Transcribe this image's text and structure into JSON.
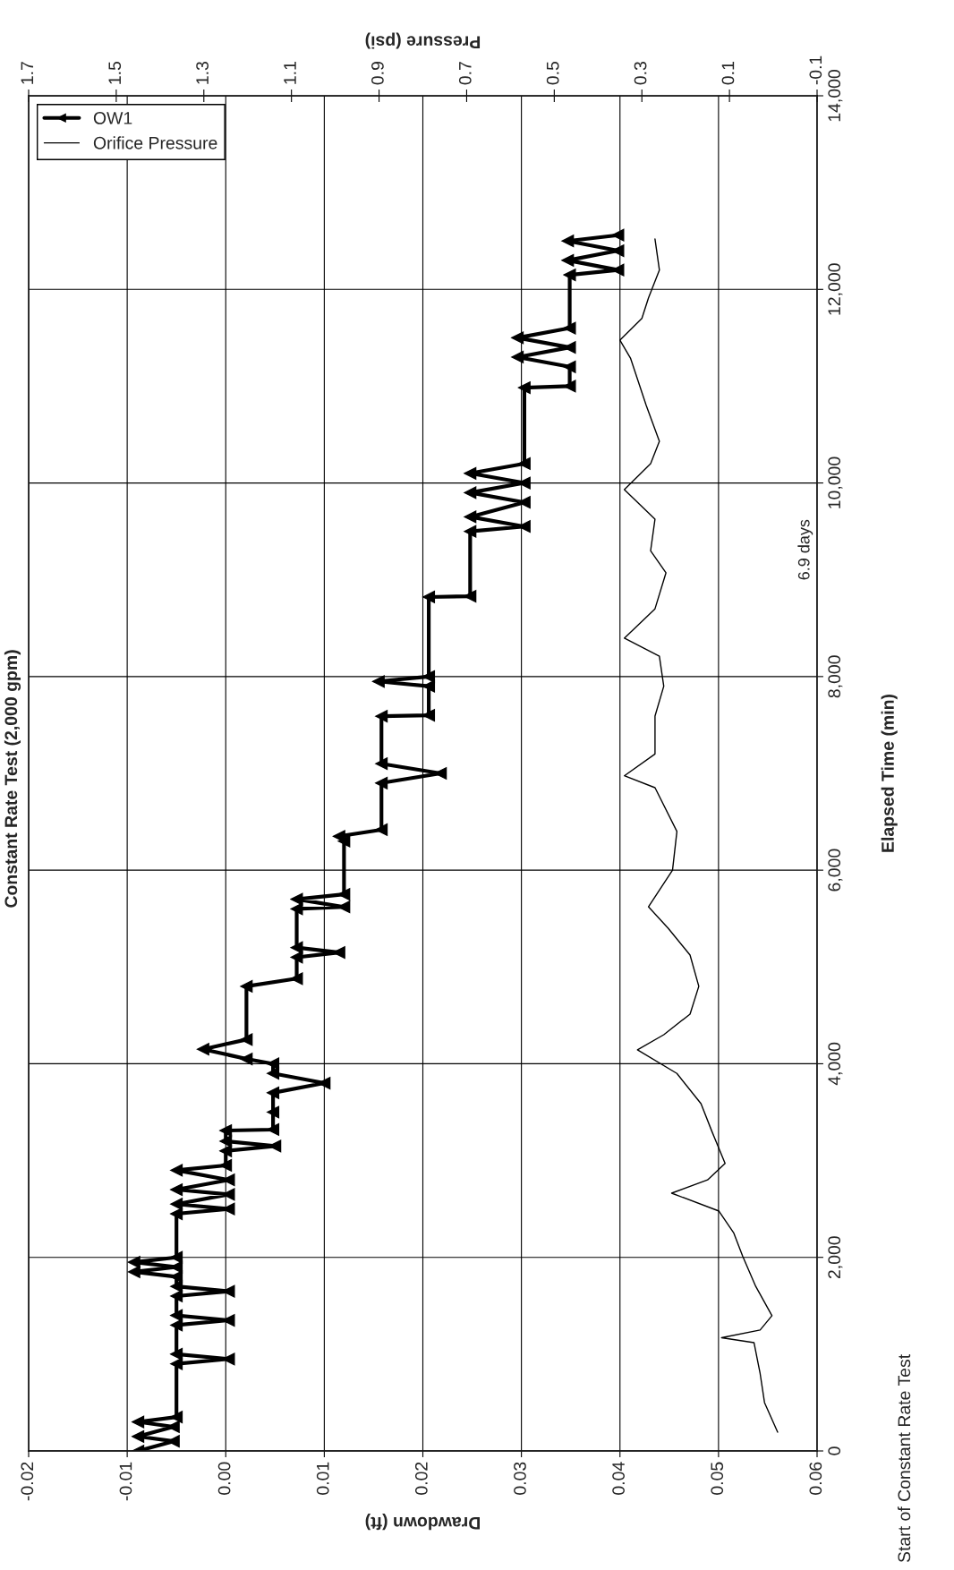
{
  "chart_data": {
    "type": "line",
    "title": "Constant Rate Test (2,000 gpm)",
    "orientation": "horizontal",
    "xlabel": "Drawdown (ft)",
    "x2label": "Pressure (psi)",
    "ylabel": "Elapsed Time (min)",
    "xlim": [
      -0.02,
      0.06
    ],
    "xticks": [
      {
        "value": -0.02,
        "label": "-0.02"
      },
      {
        "value": -0.01,
        "label": "-0.01"
      },
      {
        "value": 0,
        "label": "0.00"
      },
      {
        "value": 0.01,
        "label": "0.01"
      },
      {
        "value": 0.02,
        "label": "0.02"
      },
      {
        "value": 0.03,
        "label": "0.03"
      },
      {
        "value": 0.04,
        "label": "0.04"
      },
      {
        "value": 0.05,
        "label": "0.05"
      },
      {
        "value": 0.06,
        "label": "0.06"
      }
    ],
    "x2lim": [
      1.7,
      -0.1
    ],
    "x2ticks": [
      1.7,
      1.5,
      1.3,
      1.1,
      0.9,
      0.7,
      0.5,
      0.3,
      0.1,
      -0.1
    ],
    "ylim": [
      0,
      14000
    ],
    "yticks": [
      0,
      {
        "value": 2000,
        "label": "2,000"
      },
      {
        "value": 4000,
        "label": "4,000"
      },
      {
        "value": 6000,
        "label": "6,000"
      },
      {
        "value": 8000,
        "label": "8,000"
      },
      {
        "value": 10000,
        "label": "10,000"
      },
      {
        "value": 12000,
        "label": "12,000"
      },
      {
        "value": 14000,
        "label": "14,000"
      }
    ],
    "grid": true,
    "legend": "top left",
    "annotations": [
      "6.9 days",
      "Start of Constant Rate Test"
    ],
    "series": [
      {
        "name": "OW1",
        "color": "#000000",
        "marker": "triangle",
        "x": [
          0,
          100,
          150,
          250,
          300,
          350,
          900,
          950,
          1000,
          1300,
          1350,
          1400,
          1600,
          1650,
          1700,
          1800,
          1850,
          1900,
          1950,
          2000,
          2450,
          2500,
          2550,
          2650,
          2700,
          2800,
          2900,
          2950,
          3100,
          3150,
          3200,
          3310,
          3320,
          3500,
          3700,
          3800,
          3900,
          4000,
          4050,
          4150,
          4250,
          4800,
          4880,
          5100,
          5150,
          5200,
          5600,
          5620,
          5700,
          5750,
          6300,
          6350,
          6418,
          6900,
          7000,
          7100,
          7590,
          7600,
          7900,
          7950,
          8000,
          8822,
          8830,
          9500,
          9550,
          9650,
          9800,
          9900,
          10000,
          10100,
          10200,
          10985,
          11000,
          11200,
          11300,
          11400,
          11500,
          11600,
          12150,
          12200,
          12300,
          12400,
          12500,
          12560
        ],
        "values": [
          -0.0089,
          -0.0053,
          -0.0089,
          -0.0053,
          -0.0089,
          -0.005,
          -0.005,
          0.0003,
          -0.005,
          -0.005,
          0.0003,
          -0.005,
          -0.005,
          0.0003,
          -0.005,
          -0.005,
          -0.0093,
          -0.005,
          -0.0093,
          -0.005,
          -0.005,
          0.0003,
          -0.005,
          0.0003,
          -0.005,
          0.0003,
          -0.005,
          0.0,
          0.0,
          0.005,
          0.0,
          0.0,
          0.0048,
          0.0048,
          0.0048,
          0.01,
          0.0048,
          0.0048,
          0.0021,
          -0.0023,
          0.0021,
          0.0021,
          0.0072,
          0.0072,
          0.0115,
          0.0072,
          0.0072,
          0.012,
          0.0072,
          0.012,
          0.012,
          0.0115,
          0.0158,
          0.0158,
          0.0218,
          0.0158,
          0.0158,
          0.0206,
          0.0206,
          0.0155,
          0.0206,
          0.0206,
          0.0248,
          0.0248,
          0.0303,
          0.0248,
          0.0303,
          0.0248,
          0.0303,
          0.0248,
          0.0303,
          0.0303,
          0.0349,
          0.0349,
          0.0296,
          0.0349,
          0.0296,
          0.0349,
          0.0349,
          0.0398,
          0.0347,
          0.0398,
          0.0347,
          0.0398
        ]
      },
      {
        "name": "Orifice Pressure",
        "color": "#000000",
        "marker": "none",
        "axis": "x2",
        "x": [
          194,
          500,
          800,
          1119,
          1170,
          1250,
          1397,
          1700,
          2013,
          2250,
          2478,
          2663,
          2800,
          2970,
          3300,
          3588,
          3900,
          4143,
          4300,
          4513,
          4800,
          5123,
          5400,
          5622,
          6000,
          6400,
          6852,
          6975,
          7200,
          7592,
          7900,
          8211,
          8397,
          8700,
          9072,
          9300,
          9627,
          9932,
          10200,
          10430,
          10800,
          11290,
          11475,
          11700,
          11910,
          12200,
          12520
        ],
        "values": [
          -0.01,
          0.02,
          0.03,
          0.044,
          0.118,
          0.03,
          0.003,
          0.04,
          0.07,
          0.09,
          0.124,
          0.232,
          0.15,
          0.11,
          0.14,
          0.165,
          0.22,
          0.31,
          0.25,
          0.19,
          0.17,
          0.19,
          0.24,
          0.285,
          0.23,
          0.22,
          0.27,
          0.34,
          0.27,
          0.27,
          0.25,
          0.26,
          0.34,
          0.27,
          0.245,
          0.28,
          0.27,
          0.34,
          0.28,
          0.26,
          0.29,
          0.326,
          0.35,
          0.3,
          0.285,
          0.26,
          0.27
        ]
      }
    ]
  }
}
